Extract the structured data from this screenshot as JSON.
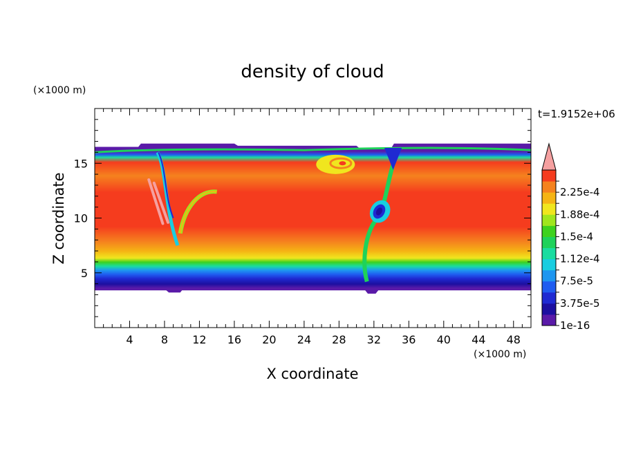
{
  "chart_data": {
    "type": "heatmap",
    "title": "density of cloud",
    "xlabel": "X coordinate",
    "ylabel": "Z coordinate",
    "x_unit_label": "(×1000 m)",
    "y_unit_label": "(×1000 m)",
    "time_label": "t=1.9152e+06",
    "xlim": [
      0,
      50
    ],
    "ylim": [
      0,
      20
    ],
    "x_ticks": [
      4,
      8,
      12,
      16,
      20,
      24,
      28,
      32,
      36,
      40,
      44,
      48
    ],
    "y_ticks": [
      5,
      10,
      15
    ],
    "colorbar": {
      "levels": [
        "1e-16",
        "",
        "3.75e-5",
        "",
        "7.5e-5",
        "",
        "1.12e-4",
        "",
        "1.5e-4",
        "",
        "1.88e-4",
        "",
        "2.25e-4",
        ""
      ],
      "colors": [
        "#5a1aa8",
        "#1c0fa0",
        "#1f2ad2",
        "#1f5cf0",
        "#1e96f0",
        "#19cde0",
        "#1adca0",
        "#1ed25a",
        "#3ed21e",
        "#a0e61e",
        "#f0e61e",
        "#f5b414",
        "#f5821e",
        "#f53c1e"
      ],
      "extend_color": "#f5a0a0"
    },
    "field": {
      "description": "layered cloud density: bottom ~3.4, top ~16.5",
      "cloud_base": 3.4,
      "cloud_top": 16.5
    }
  }
}
